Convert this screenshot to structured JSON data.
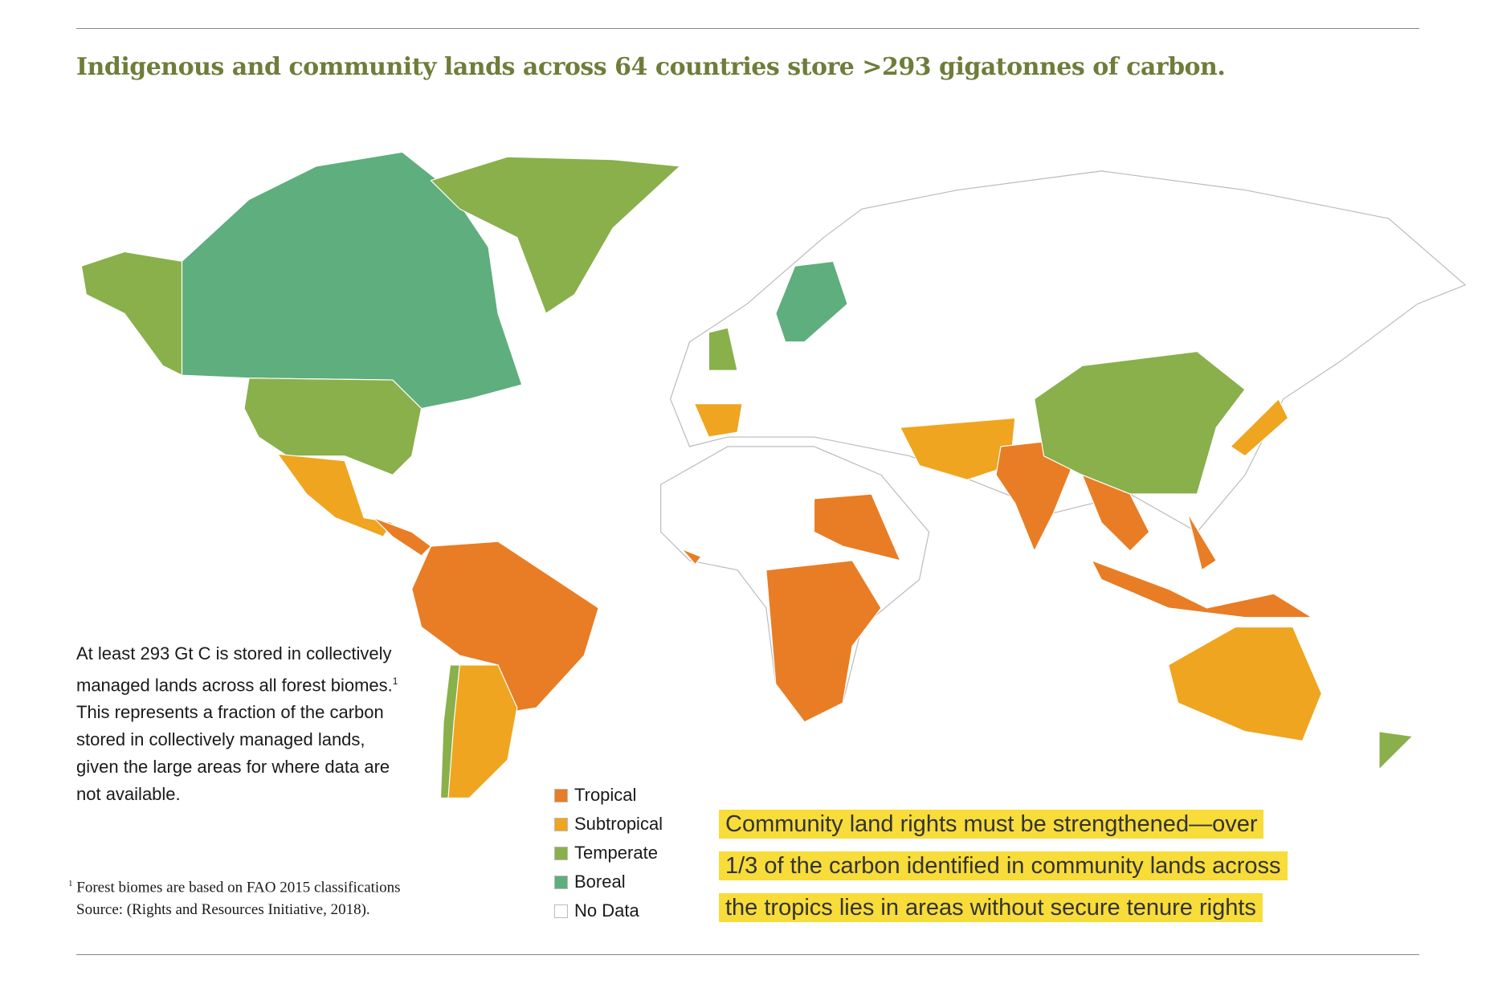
{
  "title": "Indigenous and community lands across 64 countries store >293 gigatonnes of carbon.",
  "body_text": {
    "before": "At least 293 Gt C is stored in collectively managed lands across all forest biomes.",
    "note_mark": "1",
    "after": " This represents a fraction of the carbon stored in collectively managed lands, given the large areas for where data are not available."
  },
  "footnote": {
    "mark": "1",
    "text": "Forest biomes are based on FAO 2015 classifications",
    "source": "Source: (Rights and Resources Initiative, 2018)."
  },
  "legend": [
    {
      "label": "Tropical",
      "color": "#e87d25"
    },
    {
      "label": "Subtropical",
      "color": "#efa520"
    },
    {
      "label": "Temperate",
      "color": "#89b04b"
    },
    {
      "label": "Boreal",
      "color": "#5fae7e"
    },
    {
      "label": "No Data",
      "color": "#ffffff"
    }
  ],
  "callout": [
    "Community land rights must be strengthened—over",
    "1/3 of the carbon identified in community lands across",
    "the tropics lies in areas without secure tenure rights"
  ]
}
